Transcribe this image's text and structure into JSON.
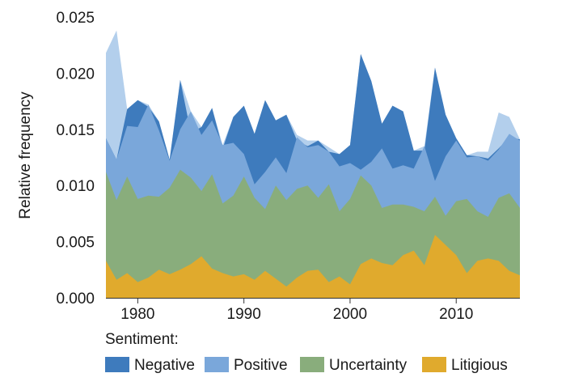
{
  "chart_data": {
    "type": "area",
    "title": "",
    "xlabel": "",
    "ylabel": "Relative frequency",
    "xlim": [
      1977,
      2016
    ],
    "ylim": [
      0,
      0.025
    ],
    "x_ticks": [
      1980,
      1990,
      2000,
      2010
    ],
    "y_ticks": [
      "0.000",
      "0.005",
      "0.010",
      "0.015",
      "0.020",
      "0.025"
    ],
    "grid": false,
    "legend": {
      "title": "Sentiment:",
      "position": "bottom"
    },
    "x": [
      1977,
      1978,
      1979,
      1980,
      1981,
      1982,
      1983,
      1984,
      1985,
      1986,
      1987,
      1988,
      1989,
      1990,
      1991,
      1992,
      1993,
      1994,
      1995,
      1996,
      1997,
      1998,
      1999,
      2000,
      2001,
      2002,
      2003,
      2004,
      2005,
      2006,
      2007,
      2008,
      2009,
      2010,
      2011,
      2012,
      2013,
      2014,
      2015,
      2016
    ],
    "series": [
      {
        "name": "Negative",
        "color": "#3e7bbd",
        "values": [
          0.0142,
          0.0123,
          0.0168,
          0.0176,
          0.017,
          0.0157,
          0.0123,
          0.0194,
          0.0147,
          0.0152,
          0.0169,
          0.0133,
          0.0161,
          0.0171,
          0.0146,
          0.0176,
          0.0158,
          0.0163,
          0.014,
          0.0135,
          0.014,
          0.013,
          0.0128,
          0.0136,
          0.0217,
          0.0193,
          0.0155,
          0.0171,
          0.0166,
          0.0131,
          0.0131,
          0.0205,
          0.0163,
          0.0142,
          0.0127,
          0.0126,
          0.0124,
          0.0133,
          0.0143,
          0.0141
        ]
      },
      {
        "name": "Positive",
        "color": "#7aa7da",
        "values": [
          0.0142,
          0.0123,
          0.0153,
          0.0152,
          0.0172,
          0.0149,
          0.0122,
          0.015,
          0.0166,
          0.0145,
          0.0158,
          0.0136,
          0.0138,
          0.0128,
          0.0101,
          0.0112,
          0.0125,
          0.0111,
          0.0143,
          0.0134,
          0.0136,
          0.013,
          0.0117,
          0.012,
          0.0114,
          0.0121,
          0.0133,
          0.0115,
          0.0118,
          0.0115,
          0.0135,
          0.0104,
          0.0126,
          0.014,
          0.0125,
          0.0126,
          0.0122,
          0.0132,
          0.0146,
          0.014
        ]
      },
      {
        "name": "Uncertainty",
        "color": "#89ad7c",
        "values": [
          0.0112,
          0.0087,
          0.0108,
          0.0088,
          0.0091,
          0.009,
          0.0098,
          0.0114,
          0.0107,
          0.0095,
          0.011,
          0.0084,
          0.0091,
          0.0108,
          0.0089,
          0.0079,
          0.01,
          0.0087,
          0.0097,
          0.01,
          0.0089,
          0.0101,
          0.0077,
          0.0088,
          0.0109,
          0.01,
          0.008,
          0.0083,
          0.0083,
          0.0081,
          0.0077,
          0.009,
          0.0073,
          0.0086,
          0.0088,
          0.0077,
          0.0072,
          0.0089,
          0.0093,
          0.008
        ]
      },
      {
        "name": "Litigious",
        "color": "#e0aa2d",
        "values": [
          0.0033,
          0.0016,
          0.0022,
          0.0014,
          0.0018,
          0.0025,
          0.0021,
          0.0025,
          0.003,
          0.0037,
          0.0026,
          0.0022,
          0.0019,
          0.0021,
          0.0016,
          0.0024,
          0.0017,
          0.001,
          0.0018,
          0.0024,
          0.0025,
          0.0014,
          0.0019,
          0.0012,
          0.003,
          0.0035,
          0.0031,
          0.0029,
          0.0038,
          0.0042,
          0.0029,
          0.0056,
          0.0047,
          0.0038,
          0.0022,
          0.0033,
          0.0035,
          0.0033,
          0.0024,
          0.002
        ]
      }
    ]
  },
  "background_series_color": "#b3cfec"
}
